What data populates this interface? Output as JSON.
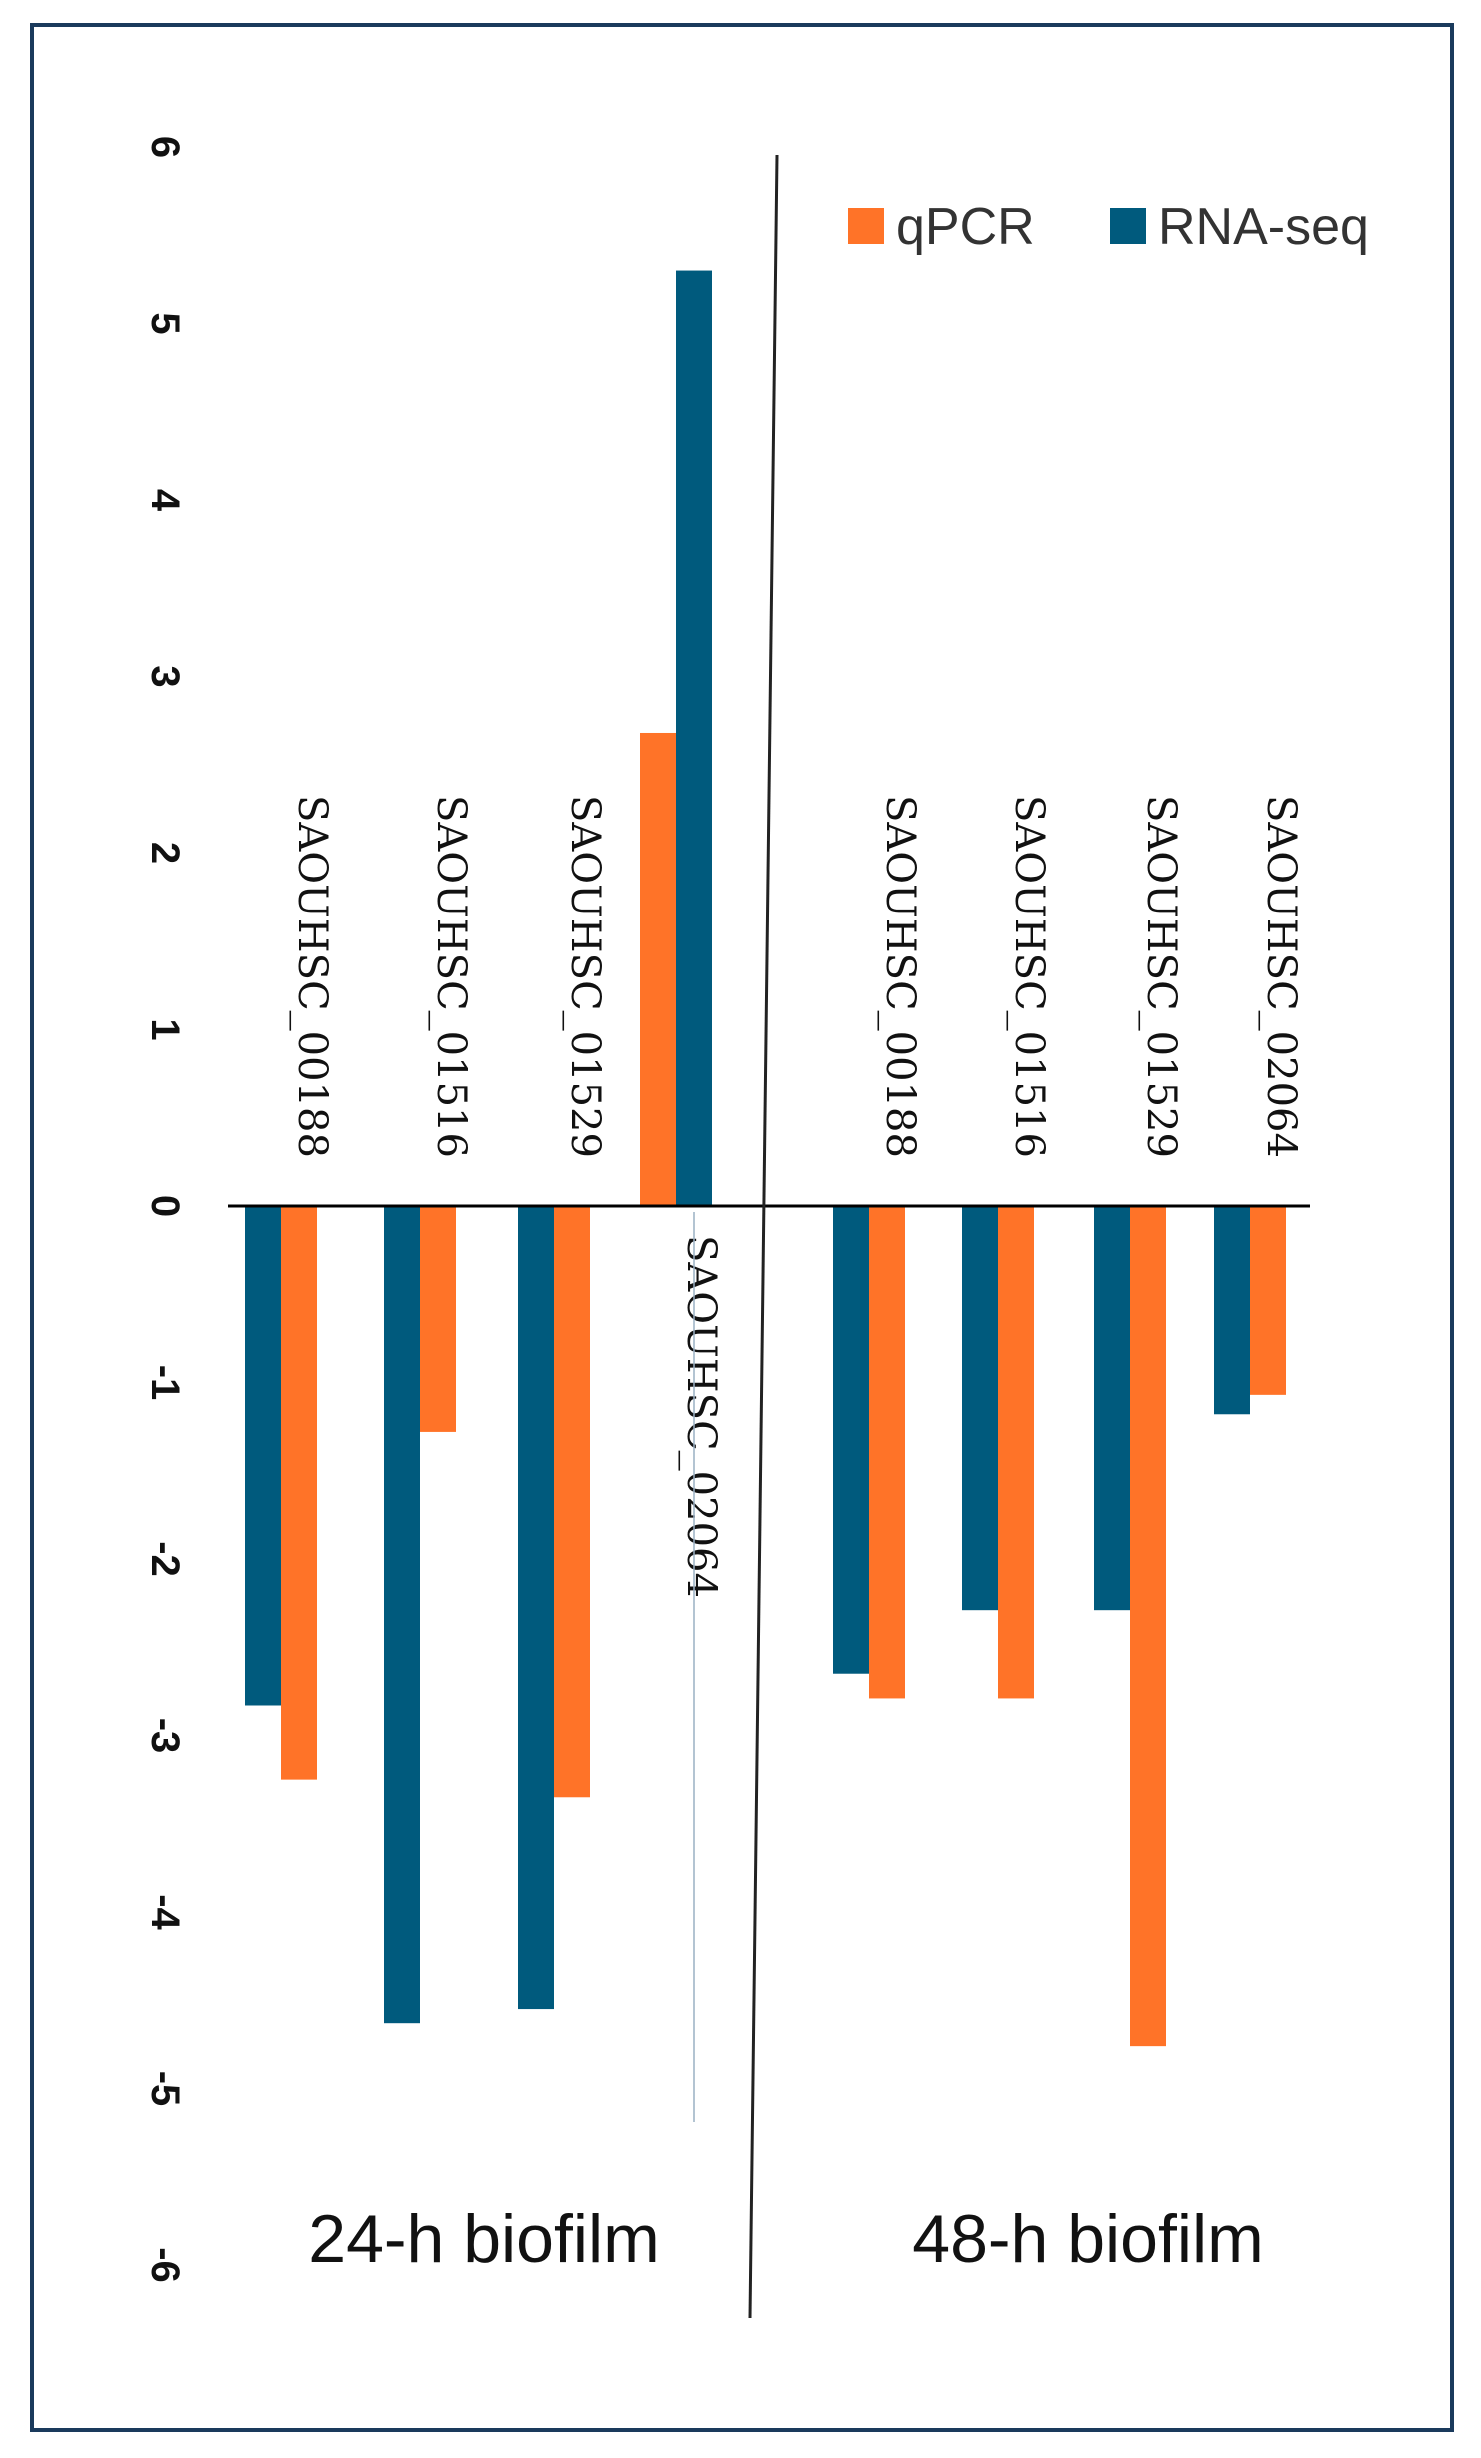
{
  "chart_data": {
    "type": "bar",
    "orientation": "vertical",
    "ylim": [
      -6,
      6
    ],
    "yticks": [
      6,
      5,
      4,
      3,
      2,
      1,
      0,
      -1,
      -2,
      -3,
      -4,
      -5,
      -6
    ],
    "grid": false,
    "legend_position": "top-right",
    "colors": {
      "qPCR": "#FF7328",
      "RNA-seq": "#005A7D"
    },
    "groups": [
      {
        "label": "24-h biofilm",
        "categories": [
          "SAOUHSC_00188",
          "SAOUHSC_01516",
          "SAOUHSC_01529",
          "SAOUHSC_02064"
        ],
        "series": [
          {
            "name": "RNA-seq",
            "values": [
              -2.83,
              -4.63,
              -4.55,
              5.3
            ]
          },
          {
            "name": "qPCR",
            "values": [
              -3.25,
              -1.28,
              -3.35,
              2.68
            ]
          }
        ]
      },
      {
        "label": "48-h biofilm",
        "categories": [
          "SAOUHSC_00188",
          "SAOUHSC_01516",
          "SAOUHSC_01529",
          "SAOUHSC_02064"
        ],
        "series": [
          {
            "name": "RNA-seq",
            "values": [
              -2.65,
              -2.29,
              -2.29,
              -1.18
            ]
          },
          {
            "name": "qPCR",
            "values": [
              -2.79,
              -2.79,
              -4.76,
              -1.07
            ]
          }
        ]
      }
    ],
    "legend": [
      "qPCR",
      "RNA-seq"
    ]
  }
}
